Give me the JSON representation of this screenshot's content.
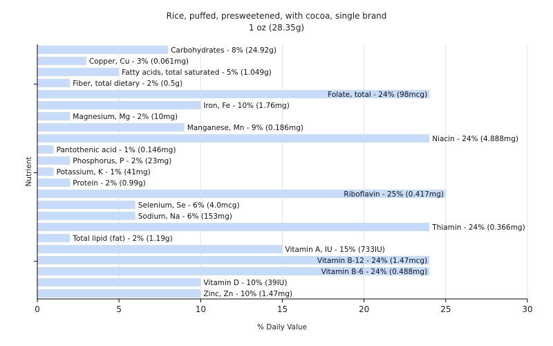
{
  "chart_data": {
    "type": "bar",
    "orientation": "horizontal",
    "title": "Rice, puffed, presweetened, with cocoa, single brand",
    "subtitle": "1 oz (28.35g)",
    "xlabel": "% Daily Value",
    "ylabel": "Nutrient",
    "xlim": [
      0,
      30
    ],
    "xticks": [
      "0",
      "5",
      "10",
      "15",
      "20",
      "25",
      "30"
    ],
    "grid": true,
    "bar_color": "#c6dcfa",
    "categories": [
      "Carbohydrates",
      "Copper, Cu",
      "Fatty acids, total saturated",
      "Fiber, total dietary",
      "Folate, total",
      "Iron, Fe",
      "Magnesium, Mg",
      "Manganese, Mn",
      "Niacin",
      "Pantothenic acid",
      "Phosphorus, P",
      "Potassium, K",
      "Protein",
      "Riboflavin",
      "Selenium, Se",
      "Sodium, Na",
      "Thiamin",
      "Total lipid (fat)",
      "Vitamin A, IU",
      "Vitamin B-12",
      "Vitamin B-6",
      "Vitamin D",
      "Zinc, Zn"
    ],
    "values": [
      8,
      3,
      5,
      2,
      24,
      10,
      2,
      9,
      24,
      1,
      2,
      1,
      2,
      25,
      6,
      6,
      24,
      2,
      15,
      24,
      24,
      10,
      10
    ],
    "labels": [
      "Carbohydrates - 8% (24.92g)",
      "Copper, Cu - 3% (0.061mg)",
      "Fatty acids, total saturated - 5% (1.049g)",
      "Fiber, total dietary - 2% (0.5g)",
      "Folate, total - 24% (98mcg)",
      "Iron, Fe - 10% (1.76mg)",
      "Magnesium, Mg - 2% (10mg)",
      "Manganese, Mn - 9% (0.186mg)",
      "Niacin - 24% (4.888mg)",
      "Pantothenic acid - 1% (0.146mg)",
      "Phosphorus, P - 2% (23mg)",
      "Potassium, K - 1% (41mg)",
      "Protein - 2% (0.99g)",
      "Riboflavin - 25% (0.417mg)",
      "Selenium, Se - 6% (4.0mcg)",
      "Sodium, Na - 6% (153mg)",
      "Thiamin - 24% (0.366mg)",
      "Total lipid (fat) - 2% (1.19g)",
      "Vitamin A, IU - 15% (733IU)",
      "Vitamin B-12 - 24% (1.47mcg)",
      "Vitamin B-6 - 24% (0.488mg)",
      "Vitamin D - 10% (39IU)",
      "Zinc, Zn - 10% (1.47mg)"
    ],
    "label_inside": [
      false,
      false,
      false,
      false,
      true,
      false,
      false,
      false,
      false,
      false,
      false,
      false,
      false,
      true,
      false,
      false,
      false,
      false,
      false,
      true,
      true,
      false,
      false
    ]
  }
}
